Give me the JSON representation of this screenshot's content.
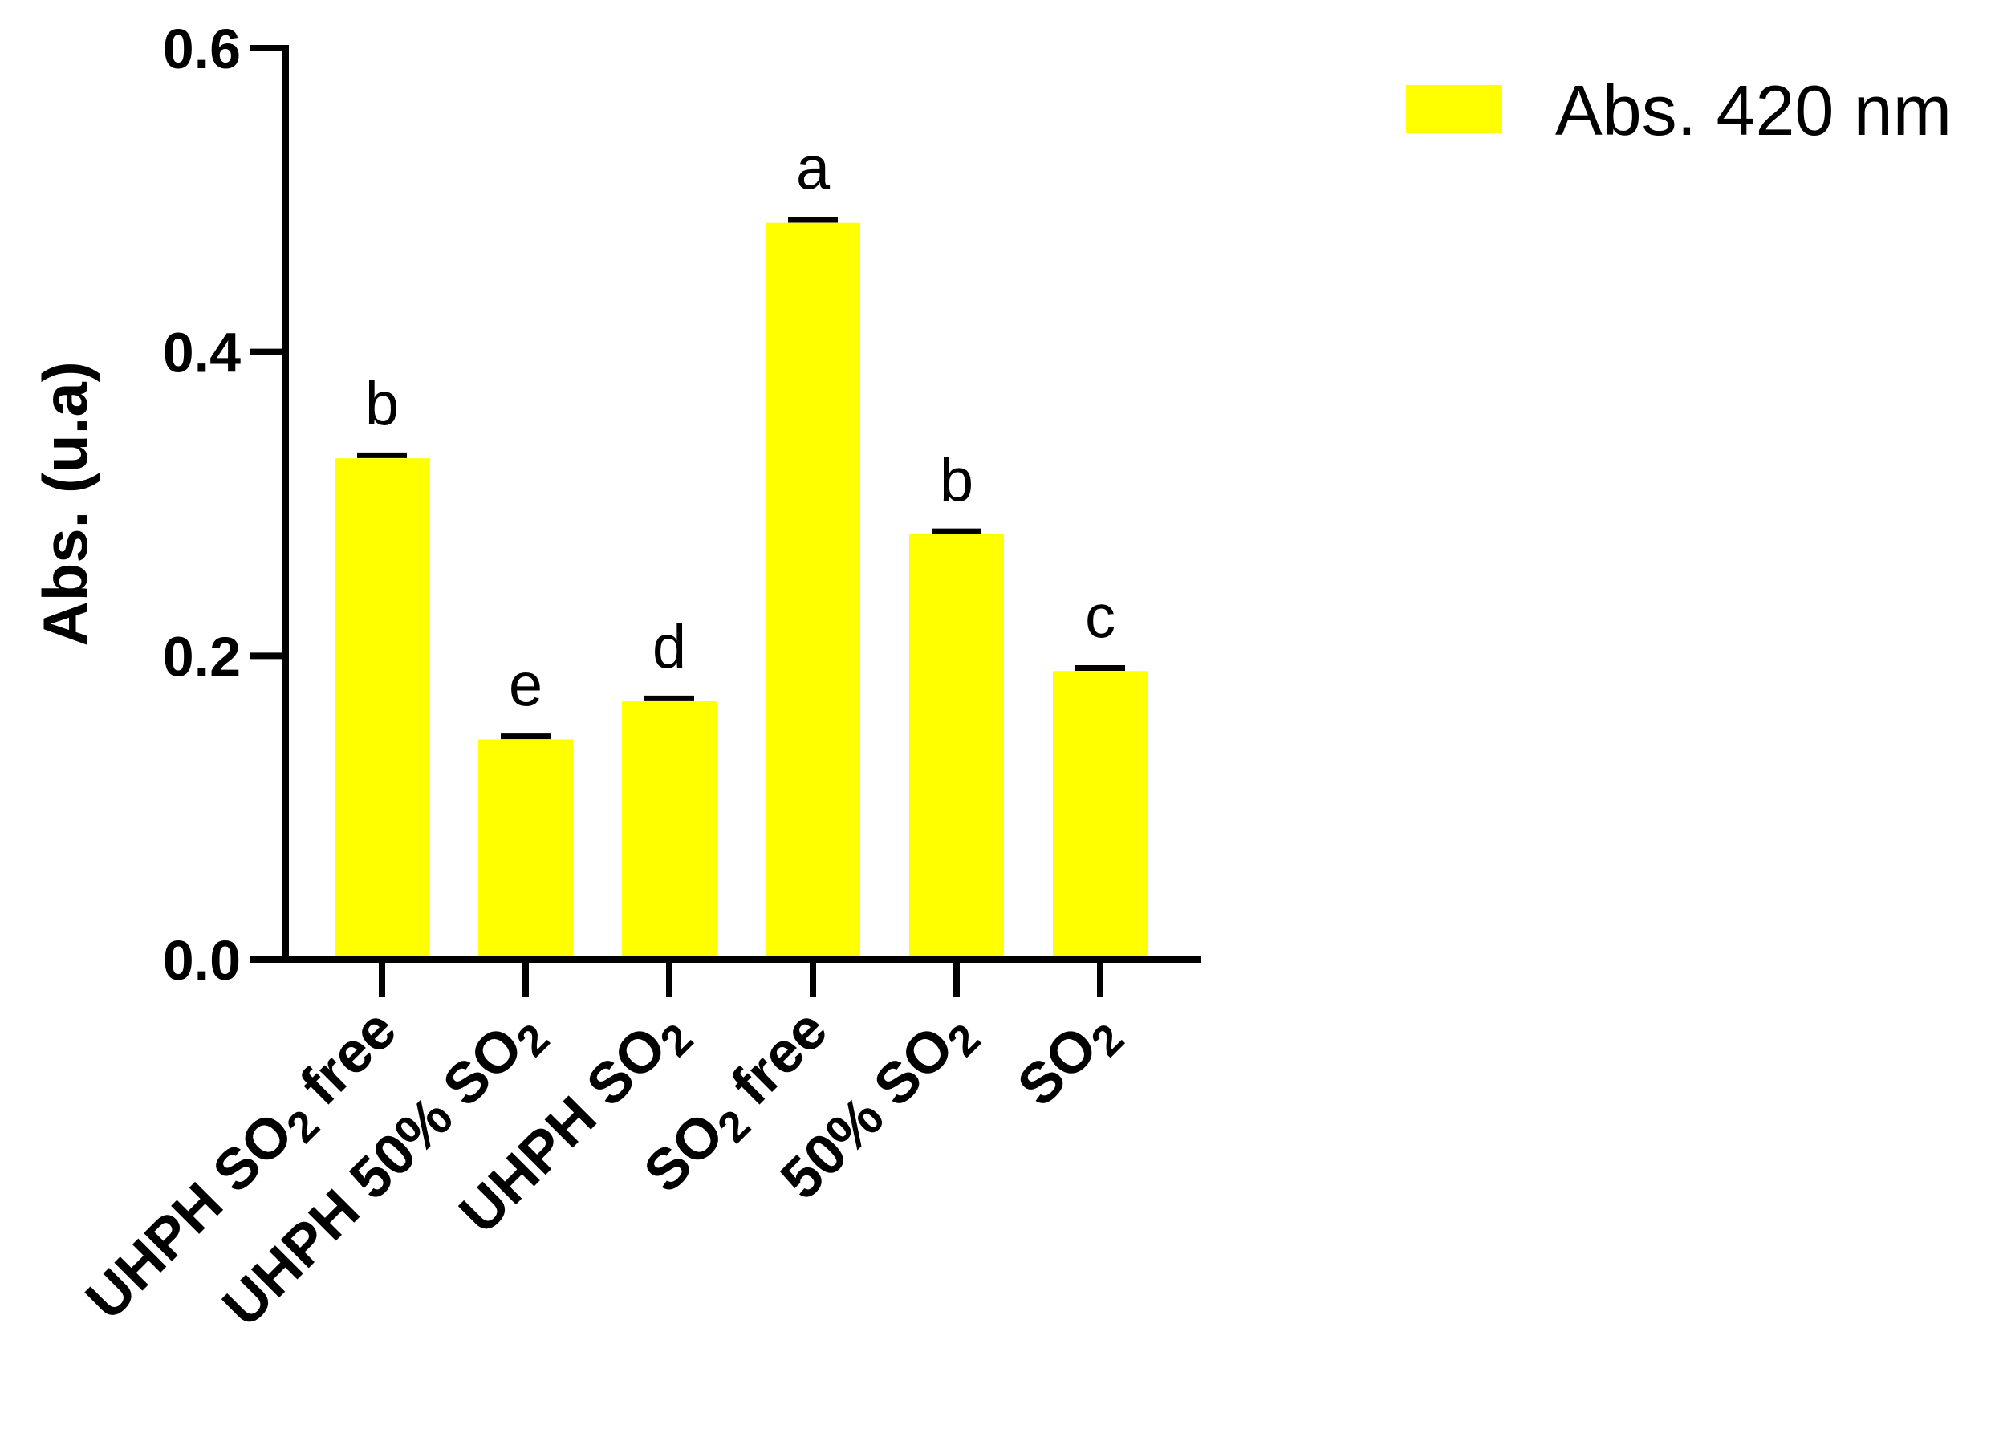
{
  "chart_data": {
    "type": "bar",
    "categories": [
      {
        "main": "UHPH SO",
        "sub": "2",
        "tail": " free"
      },
      {
        "main": "UHPH 50% SO",
        "sub": "2",
        "tail": ""
      },
      {
        "main": "UHPH SO",
        "sub": "2",
        "tail": ""
      },
      {
        "main": "SO",
        "sub": "2",
        "tail": " free"
      },
      {
        "main": "50% SO",
        "sub": "2",
        "tail": ""
      },
      {
        "main": "SO",
        "sub": "2",
        "tail": ""
      }
    ],
    "series": [
      {
        "name": "Abs. 420 nm",
        "color": "#ffff00",
        "values": [
          0.33,
          0.145,
          0.17,
          0.485,
          0.28,
          0.19
        ],
        "errors": [
          0.002,
          0.002,
          0.002,
          0.002,
          0.002,
          0.002
        ],
        "significance_letters": [
          "b",
          "e",
          "d",
          "a",
          "b",
          "c"
        ]
      }
    ],
    "ylabel": "Abs. (u.a)",
    "xlabel": "",
    "ylim": [
      0,
      0.6
    ],
    "yticks": [
      0.0,
      0.2,
      0.4,
      0.6
    ],
    "ytick_labels": [
      "0.0",
      "0.2",
      "0.4",
      "0.6"
    ],
    "legend_position": "top-right",
    "grid": false
  }
}
